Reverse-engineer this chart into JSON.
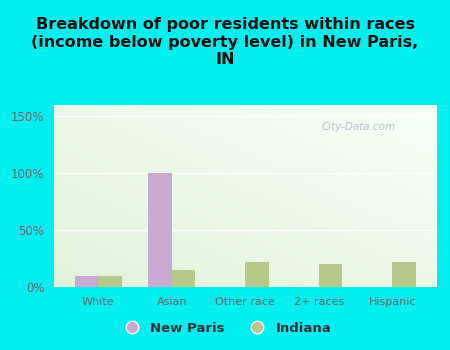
{
  "categories": [
    "White",
    "Asian",
    "Other race",
    "2+ races",
    "Hispanic"
  ],
  "new_paris": [
    10,
    100,
    0,
    0,
    0
  ],
  "indiana": [
    10,
    15,
    22,
    20,
    22
  ],
  "new_paris_color": "#c9a8d4",
  "indiana_color": "#b5c98a",
  "title": "Breakdown of poor residents within races\n(income below poverty level) in New Paris,\nIN",
  "title_fontsize": 11.5,
  "title_fontweight": "bold",
  "background_color": "#00f0f0",
  "ylabel_ticks": [
    "0%",
    "50%",
    "100%",
    "150%"
  ],
  "ytick_vals": [
    0,
    50,
    100,
    150
  ],
  "ylim": [
    0,
    160
  ],
  "bar_width": 0.32,
  "legend_new_paris": "New Paris",
  "legend_indiana": "Indiana",
  "watermark": "City-Data.com",
  "grid_color": "#ffffff",
  "tick_label_color": "#666666",
  "axis_label_color": "#666666"
}
